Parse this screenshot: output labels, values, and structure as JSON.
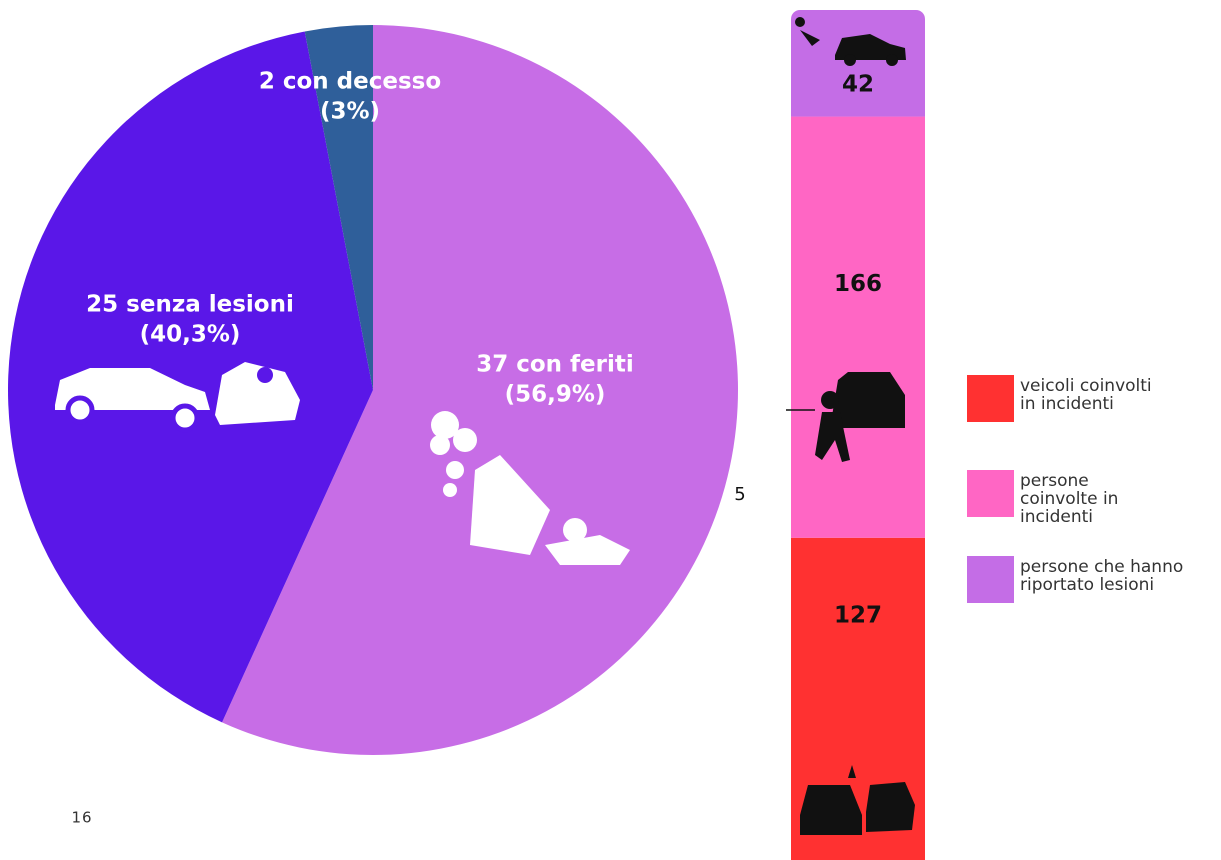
{
  "chart_data": [
    {
      "type": "pie",
      "categories": [
        "37 con feriti",
        "25 senza lesioni",
        "2 con decesso"
      ],
      "values": [
        56.9,
        40.3,
        3
      ],
      "value_labels": [
        "(56,9%)",
        "(40,3%)",
        "(3%)"
      ],
      "colors": [
        "#c76de6",
        "#5a17e8",
        "#2f5f9a"
      ]
    },
    {
      "type": "stacked-bar",
      "categories": [
        null
      ],
      "series": [
        {
          "name": "veicoli coinvolti in incidenti",
          "color": "#ff3131",
          "values": [
            127
          ]
        },
        {
          "name": "persone coinvolte in incidenti",
          "color": "#ff66c4",
          "values": [
            166
          ]
        },
        {
          "name": "persone che hanno riportato lesioni",
          "color": "#c46de6",
          "values": [
            42
          ]
        }
      ],
      "legend": "right"
    }
  ],
  "page_number": "16",
  "side_note": "5"
}
